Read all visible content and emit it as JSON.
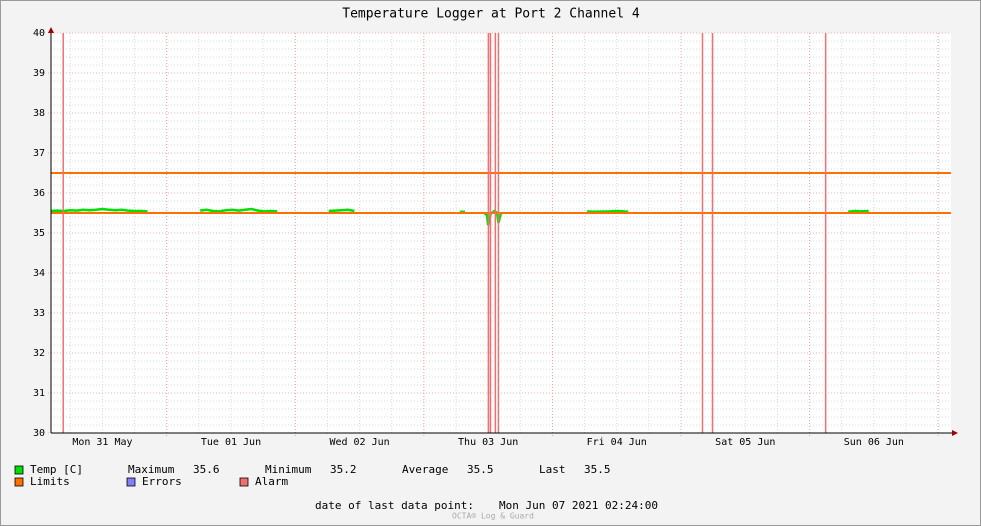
{
  "chart_data": {
    "type": "line",
    "title": "Temperature Logger at Port 2 Channel 4",
    "xlim": [
      0.1,
      7.1
    ],
    "xticks": [
      {
        "value": 0.5,
        "label": "Mon 31 May"
      },
      {
        "value": 1.5,
        "label": "Tue 01 Jun"
      },
      {
        "value": 2.5,
        "label": "Wed 02 Jun"
      },
      {
        "value": 3.5,
        "label": "Thu 03 Jun"
      },
      {
        "value": 4.5,
        "label": "Fri 04 Jun"
      },
      {
        "value": 5.5,
        "label": "Sat 05 Jun"
      },
      {
        "value": 6.5,
        "label": "Sun 06 Jun"
      }
    ],
    "x_major_step": 1,
    "x_minor_step": 0.25,
    "ylim": [
      30,
      40
    ],
    "yticks": [
      30,
      31,
      32,
      33,
      34,
      35,
      36,
      37,
      38,
      39,
      40
    ],
    "y_minor_step": 0.2,
    "grid": true,
    "series": [
      {
        "name": "Temp [C]",
        "color": "#00e000",
        "x": [
          0.1,
          0.15,
          0.2,
          0.25,
          0.3,
          0.35,
          0.4,
          0.45,
          0.5,
          0.55,
          0.6,
          0.65,
          0.7,
          0.75,
          0.8,
          0.85,
          0.86,
          1.26,
          1.31,
          1.36,
          1.41,
          1.46,
          1.51,
          1.56,
          1.61,
          1.66,
          1.71,
          1.76,
          1.81,
          1.86,
          1.87,
          2.26,
          2.31,
          2.36,
          2.41,
          2.46,
          2.47,
          3.28,
          3.32,
          3.33,
          3.47,
          3.49,
          3.5,
          3.52,
          3.55,
          3.57,
          3.58,
          3.6,
          3.61,
          4.27,
          4.32,
          4.45,
          4.5,
          4.55,
          4.59,
          4.6,
          6.3,
          6.35,
          6.4,
          6.46
        ],
        "values": [
          35.55,
          35.56,
          35.55,
          35.57,
          35.56,
          35.58,
          35.57,
          35.58,
          35.6,
          35.58,
          35.57,
          35.58,
          35.56,
          35.55,
          35.55,
          35.54,
          null,
          35.56,
          35.58,
          35.55,
          35.54,
          35.57,
          35.58,
          35.56,
          35.58,
          35.6,
          35.56,
          35.54,
          35.55,
          35.54,
          null,
          35.55,
          35.56,
          35.57,
          35.58,
          35.55,
          null,
          35.53,
          35.53,
          null,
          35.5,
          35.45,
          35.2,
          35.48,
          35.55,
          35.5,
          35.25,
          35.5,
          null,
          35.54,
          35.53,
          35.54,
          35.55,
          35.54,
          35.53,
          null,
          35.53,
          35.55,
          35.54,
          35.55
        ]
      },
      {
        "name": "Limits",
        "color": "#ff7000",
        "values": [
          36.5,
          35.5
        ]
      },
      {
        "name": "Errors",
        "color": "#7f7fff",
        "x": []
      },
      {
        "name": "Alarm",
        "color": "#f07070",
        "x": [
          0.195,
          3.502,
          3.518,
          3.556,
          3.58,
          5.167,
          5.245,
          6.125
        ]
      }
    ],
    "stats": [
      {
        "label": "Maximum",
        "value": 35.6
      },
      {
        "label": "Minimum",
        "value": 35.2
      },
      {
        "label": "Average",
        "value": 35.5
      },
      {
        "label": "Last",
        "value": 35.5
      }
    ],
    "footer_label": "date of last data point:",
    "footer_value": "Mon Jun 07 2021 02:24:00",
    "watermark": "OCTA® Log & Guard"
  }
}
